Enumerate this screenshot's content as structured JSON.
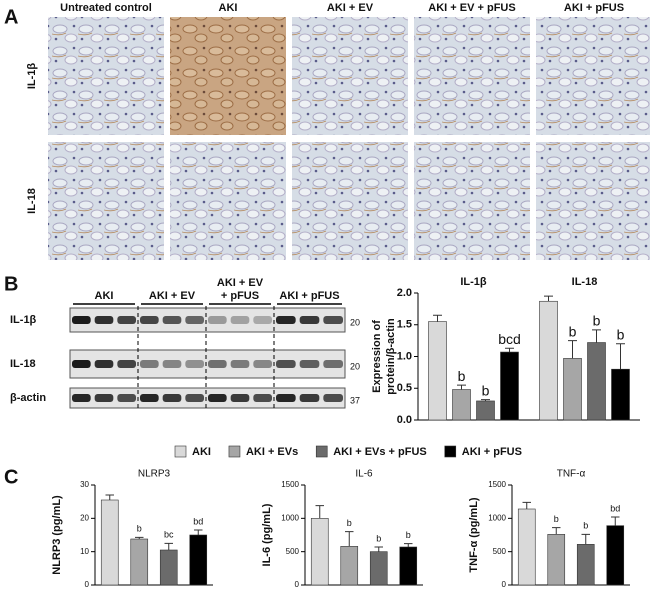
{
  "panel_labels": [
    "A",
    "B",
    "C"
  ],
  "panel_a": {
    "columns": [
      "Untreated control",
      "AKI",
      "AKI + EV",
      "AKI + EV + pFUS",
      "AKI + pFUS"
    ],
    "rows": [
      "IL-1β",
      "IL-18"
    ]
  },
  "panel_b_blot": {
    "groups": [
      [
        "AKI"
      ],
      [
        "AKI + EV"
      ],
      [
        "AKI + EV",
        "+ pFUS"
      ],
      [
        "AKI + pFUS"
      ]
    ],
    "rows": [
      "IL-1β",
      "IL-18",
      "β-actin"
    ],
    "markers": [
      20,
      20,
      37
    ]
  },
  "chart_data": [
    {
      "type": "grouped-bar",
      "categories": [
        "IL-1β",
        "IL-18"
      ],
      "ylabel": [
        "Expression of",
        "protein/β-actin"
      ],
      "ylim": [
        0,
        2
      ],
      "yticks": [
        {
          "value": 0,
          "label": "0.0"
        },
        {
          "value": 0.5,
          "label": "0.5"
        },
        {
          "value": 1,
          "label": "1.0"
        },
        {
          "value": 1.5,
          "label": "1.5"
        },
        {
          "value": 2,
          "label": "2.0"
        }
      ],
      "series": [
        {
          "name": "AKI",
          "color": "#d9d9d9",
          "values": [
            1.55,
            1.87
          ],
          "errors": [
            0.1,
            0.08
          ],
          "annotations": [
            null,
            null
          ]
        },
        {
          "name": "AKI + EVs",
          "color": "#a6a6a6",
          "values": [
            0.48,
            0.97
          ],
          "errors": [
            0.07,
            0.28
          ],
          "annotations": [
            "b",
            "b"
          ]
        },
        {
          "name": "AKI + EVs + pFUS",
          "color": "#6b6b6b",
          "values": [
            0.3,
            1.22
          ],
          "errors": [
            0.02,
            0.2
          ],
          "annotations": [
            "b",
            "b"
          ]
        },
        {
          "name": "AKI + pFUS",
          "color": "#000000",
          "values": [
            1.07,
            0.8
          ],
          "errors": [
            0.06,
            0.4
          ],
          "annotations": [
            "bcd",
            "b"
          ]
        }
      ]
    },
    {
      "type": "bar",
      "title": "NLRP3",
      "ylabel": "NLRP3 (pg/mL)",
      "categories": [
        null,
        null,
        null,
        null
      ],
      "values": [
        25.5,
        13.8,
        10.5,
        15
      ],
      "errors": [
        1.5,
        0.5,
        2,
        1.5
      ],
      "annotations": [
        null,
        "b",
        "bc",
        "bd"
      ],
      "colors": [
        "#d9d9d9",
        "#a6a6a6",
        "#6b6b6b",
        "#000000"
      ],
      "ylim": [
        0,
        30
      ],
      "yticks": [
        0,
        10,
        20,
        30
      ]
    },
    {
      "type": "bar",
      "title": "IL-6",
      "ylabel": "IL-6 (pg/mL)",
      "categories": [
        null,
        null,
        null,
        null
      ],
      "values": [
        1000,
        580,
        500,
        570
      ],
      "errors": [
        190,
        220,
        70,
        50
      ],
      "annotations": [
        null,
        "b",
        "b",
        "b"
      ],
      "colors": [
        "#d9d9d9",
        "#a6a6a6",
        "#6b6b6b",
        "#000000"
      ],
      "ylim": [
        0,
        1500
      ],
      "yticks": [
        0,
        500,
        1000,
        1500
      ]
    },
    {
      "type": "bar",
      "title": "TNF-α",
      "ylabel": "TNF-α (pg/mL)",
      "categories": [
        null,
        null,
        null,
        null
      ],
      "values": [
        1140,
        760,
        610,
        890
      ],
      "errors": [
        100,
        100,
        150,
        130
      ],
      "annotations": [
        null,
        "b",
        "b",
        "bd"
      ],
      "colors": [
        "#d9d9d9",
        "#a6a6a6",
        "#6b6b6b",
        "#000000"
      ],
      "ylim": [
        0,
        1500
      ],
      "yticks": [
        0,
        500,
        1000,
        1500
      ]
    }
  ]
}
